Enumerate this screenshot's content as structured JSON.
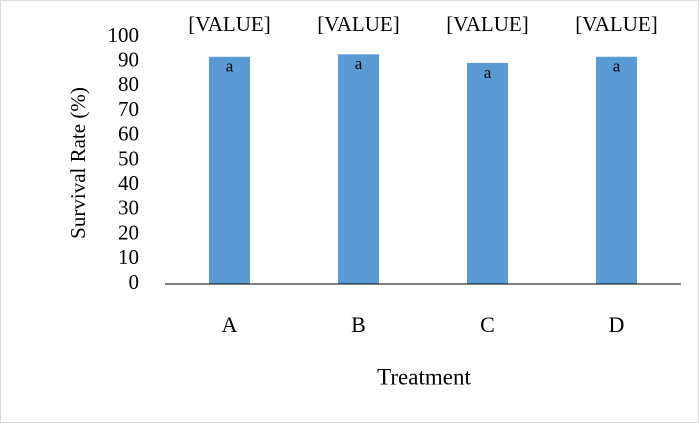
{
  "chart_data": {
    "type": "bar",
    "title": "",
    "xlabel": "Treatment",
    "ylabel": "Survival Rate (%)",
    "categories": [
      "A",
      "B",
      "C",
      "D"
    ],
    "values": [
      92,
      93,
      89.5,
      92
    ],
    "data_labels": [
      "[VALUE]",
      "[VALUE]",
      "[VALUE]",
      "[VALUE]"
    ],
    "significance_letters": [
      "a",
      "a",
      "a",
      "a"
    ],
    "ylim": [
      0,
      100
    ],
    "y_ticks": [
      0,
      10,
      20,
      30,
      40,
      50,
      60,
      70,
      80,
      90,
      100
    ],
    "grid": false,
    "legend": "none",
    "bar_color": "#5b9bd5",
    "axis_color": "#000000",
    "frame_color": "#d9d9d9"
  }
}
